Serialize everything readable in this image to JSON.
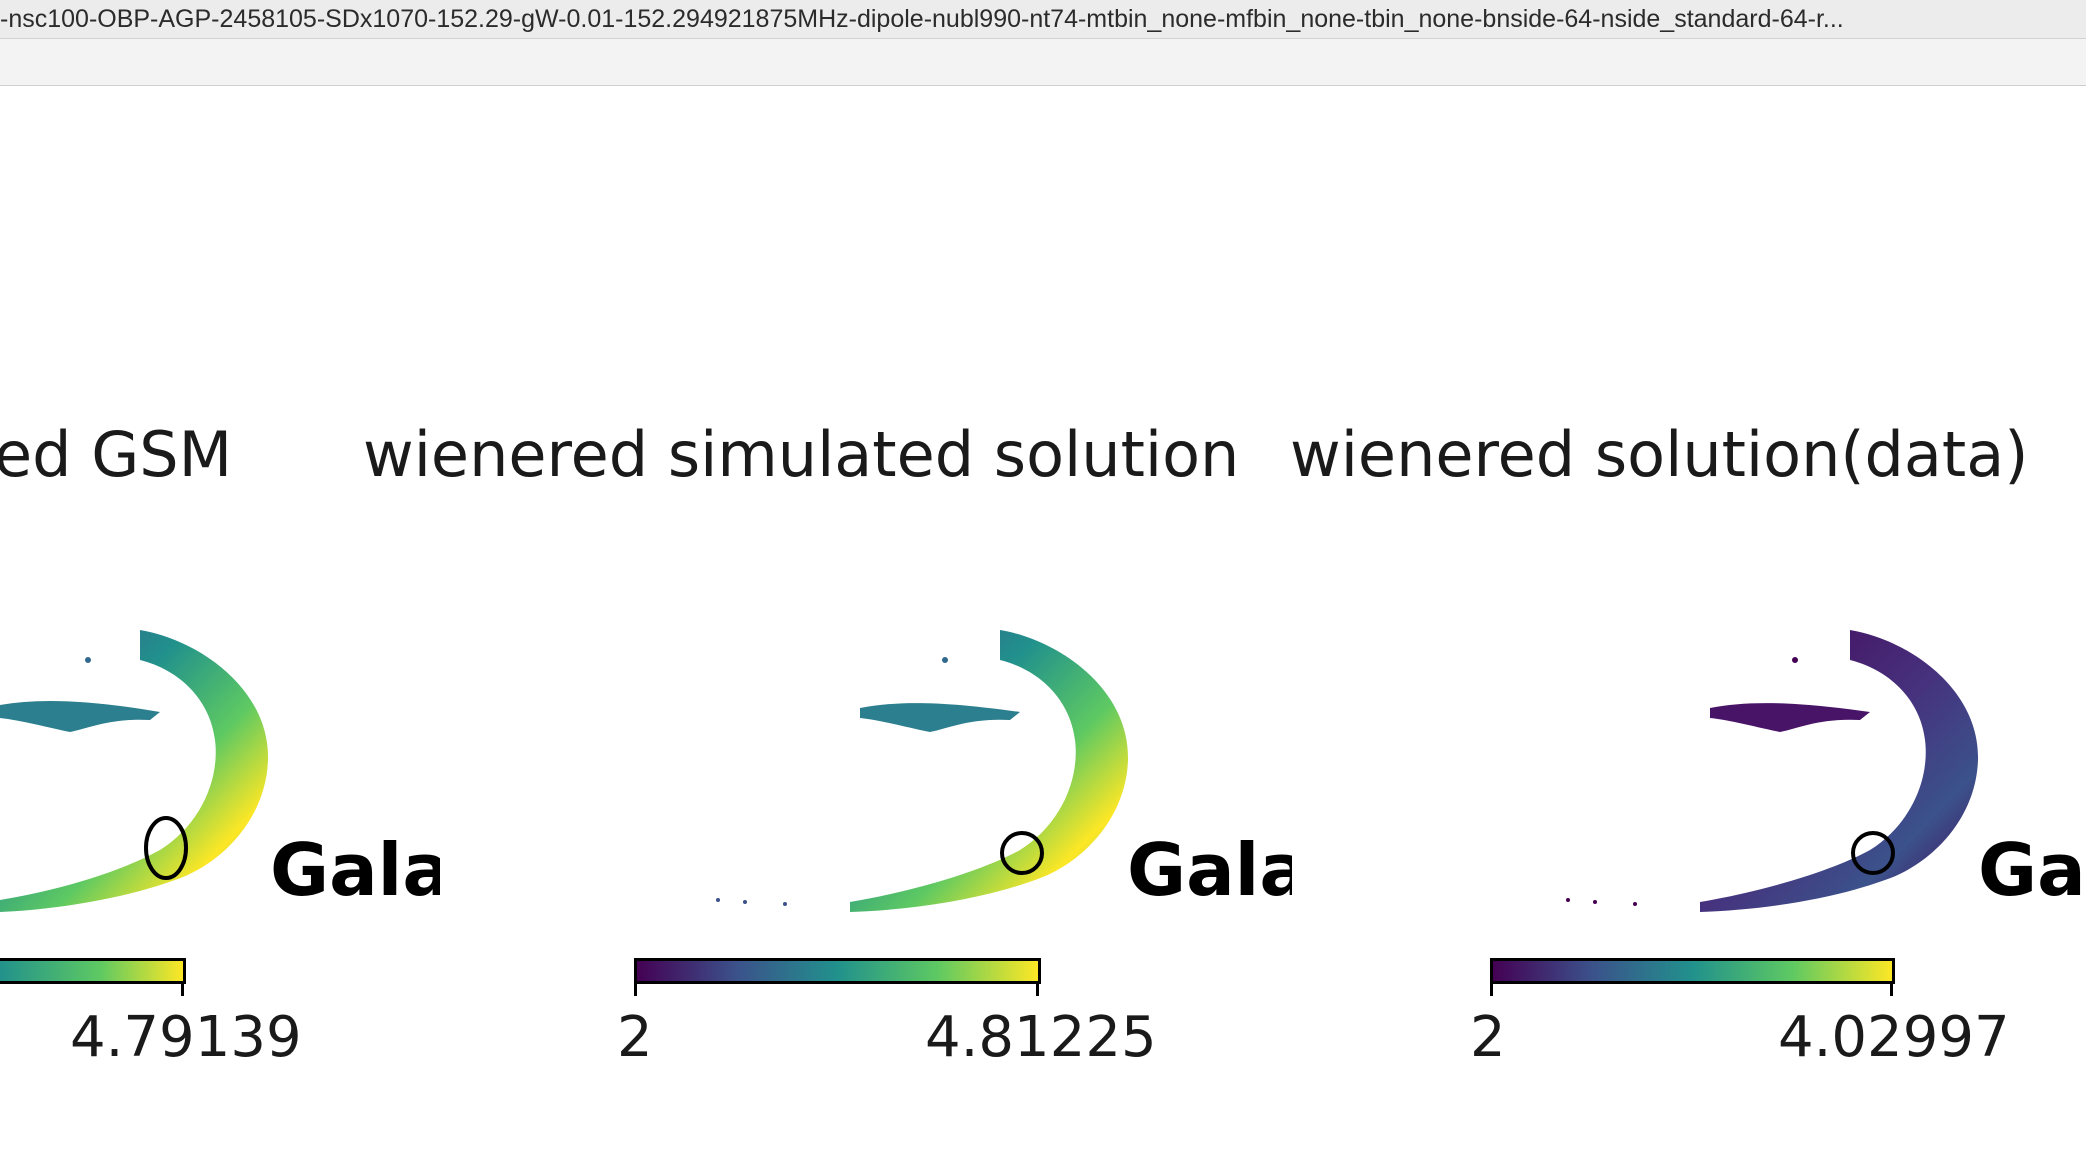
{
  "window": {
    "title": "-nsc100-OBP-AGP-2458105-SDx1070-152.29-gW-0.01-152.294921875MHz-dipole-nubl990-nt74-mtbin_none-mfbin_none-tbin_none-bnside-64-nside_standard-64-r..."
  },
  "panels": [
    {
      "title": "ed GSM",
      "label": "Gala",
      "colormap": "viridis",
      "colorbar_max": "4.79139"
    },
    {
      "title": "wienered simulated solution",
      "label": "Gala",
      "colormap": "viridis",
      "colorbar_min": "2",
      "colorbar_max": "4.81225"
    },
    {
      "title": "wienered solution(data)",
      "label": "Ga",
      "colormap": "viridis",
      "colorbar_min": "2",
      "colorbar_max": "4.02997"
    }
  ],
  "colors": {
    "viridis_start": "#440154",
    "viridis_mid": "#21918c",
    "viridis_end": "#fde725"
  }
}
